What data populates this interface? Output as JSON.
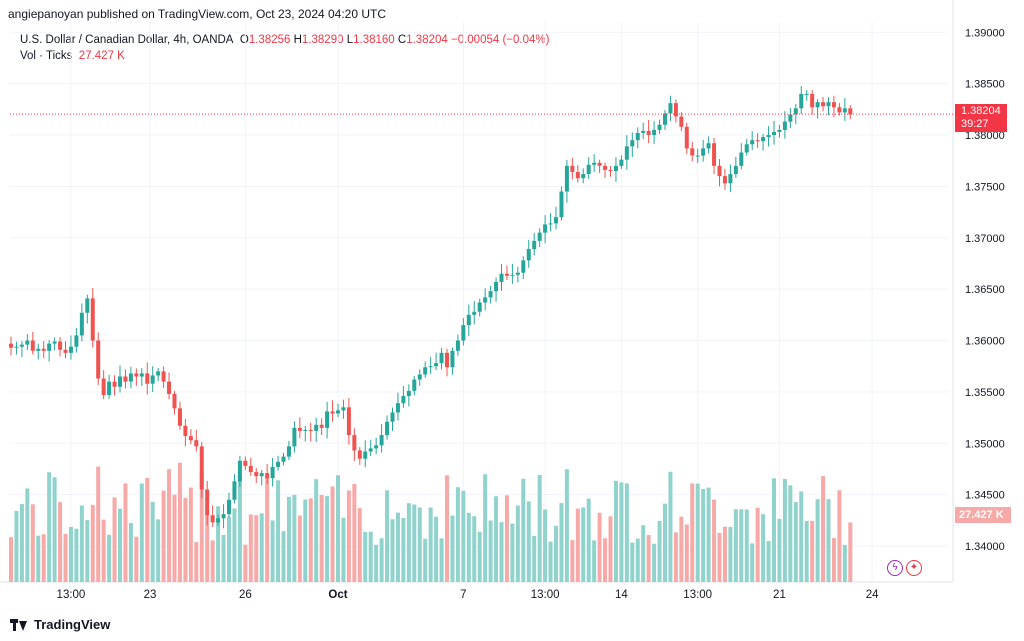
{
  "header": "angiepanoyan published on TradingView.com, Oct 23, 2024 04:20 UTC",
  "legend": {
    "symbol": "U.S. Dollar / Canadian Dollar, 4h, OANDA",
    "o_label": "O",
    "o_value": "1.38256",
    "h_label": "H",
    "h_value": "1.38290",
    "l_label": "L",
    "l_value": "1.38160",
    "c_label": "C",
    "c_value": "1.38204",
    "change": "−0.00054 (−0.04%)",
    "vol_label": "Vol · Ticks",
    "vol_value": "27.427 K"
  },
  "price_tag": {
    "price": "1.38204",
    "countdown": "39:27"
  },
  "volume_tag": "27.427 K",
  "footer": {
    "brand": "TradingView"
  },
  "events": [
    {
      "icon": "lightning-icon",
      "glyph": "ϟ",
      "color": "#9c27b0"
    },
    {
      "icon": "canada-flag-icon",
      "glyph": "✦",
      "color": "#f23645"
    }
  ],
  "colors": {
    "up": "#26a69a",
    "down": "#ef5350",
    "vol_up": "#8fd3cc",
    "vol_down": "#f7a9a7"
  },
  "chart_data": {
    "type": "candlestick",
    "symbol": "USDCAD",
    "timeframe": "4h",
    "ylim": [
      1.3365,
      1.391
    ],
    "y_ticks": [
      "1.39000",
      "1.38500",
      "1.38000",
      "1.37500",
      "1.37000",
      "1.36500",
      "1.36000",
      "1.35500",
      "1.35000",
      "1.34500",
      "1.34000"
    ],
    "y_tick_values": [
      1.39,
      1.385,
      1.38,
      1.375,
      1.37,
      1.365,
      1.36,
      1.355,
      1.35,
      1.345,
      1.34
    ],
    "x_ticks": [
      "13:00",
      "23",
      "26",
      "Oct",
      "7",
      "13:00",
      "14",
      "13:00",
      "21",
      "24"
    ],
    "x_tick_index": [
      11,
      25.5,
      43,
      60,
      83,
      98,
      112,
      126,
      141,
      158
    ],
    "last_price": 1.38204,
    "closes": [
      1.3593,
      1.3594,
      1.3596,
      1.36,
      1.359,
      1.3592,
      1.359,
      1.3597,
      1.3599,
      1.3591,
      1.3588,
      1.3594,
      1.3605,
      1.3627,
      1.3641,
      1.36,
      1.3563,
      1.3547,
      1.356,
      1.3555,
      1.3565,
      1.356,
      1.3568,
      1.3565,
      1.3568,
      1.3558,
      1.3566,
      1.357,
      1.356,
      1.3548,
      1.3534,
      1.3517,
      1.3507,
      1.3503,
      1.3497,
      1.3455,
      1.343,
      1.3423,
      1.3427,
      1.3431,
      1.3445,
      1.3463,
      1.3483,
      1.3478,
      1.3472,
      1.3468,
      1.3471,
      1.3466,
      1.3477,
      1.3482,
      1.3487,
      1.3497,
      1.3515,
      1.3512,
      1.3513,
      1.3512,
      1.3518,
      1.3515,
      1.3531,
      1.3529,
      1.3532,
      1.3535,
      1.3508,
      1.3493,
      1.3485,
      1.3492,
      1.3495,
      1.3498,
      1.3508,
      1.3521,
      1.353,
      1.3539,
      1.3546,
      1.3551,
      1.3562,
      1.3567,
      1.3574,
      1.3575,
      1.3578,
      1.3588,
      1.3574,
      1.359,
      1.36,
      1.3615,
      1.3625,
      1.3628,
      1.3637,
      1.3642,
      1.3648,
      1.3657,
      1.3665,
      1.3663,
      1.3664,
      1.3666,
      1.3678,
      1.3689,
      1.3697,
      1.3705,
      1.3713,
      1.3714,
      1.372,
      1.3745,
      1.377,
      1.3764,
      1.3758,
      1.3762,
      1.3771,
      1.3773,
      1.377,
      1.3766,
      1.3765,
      1.377,
      1.3776,
      1.3789,
      1.3795,
      1.3802,
      1.3804,
      1.38,
      1.3805,
      1.381,
      1.3821,
      1.3831,
      1.3818,
      1.3808,
      1.3787,
      1.378,
      1.378,
      1.3787,
      1.3792,
      1.377,
      1.376,
      1.3753,
      1.3762,
      1.377,
      1.3783,
      1.3791,
      1.3795,
      1.3794,
      1.3798,
      1.38,
      1.3803,
      1.3805,
      1.3813,
      1.382,
      1.3826,
      1.384,
      1.384,
      1.3827,
      1.3832,
      1.3828,
      1.3832,
      1.3827,
      1.3822,
      1.3826,
      1.382
    ],
    "volume_max_ticks_k": 65
  }
}
